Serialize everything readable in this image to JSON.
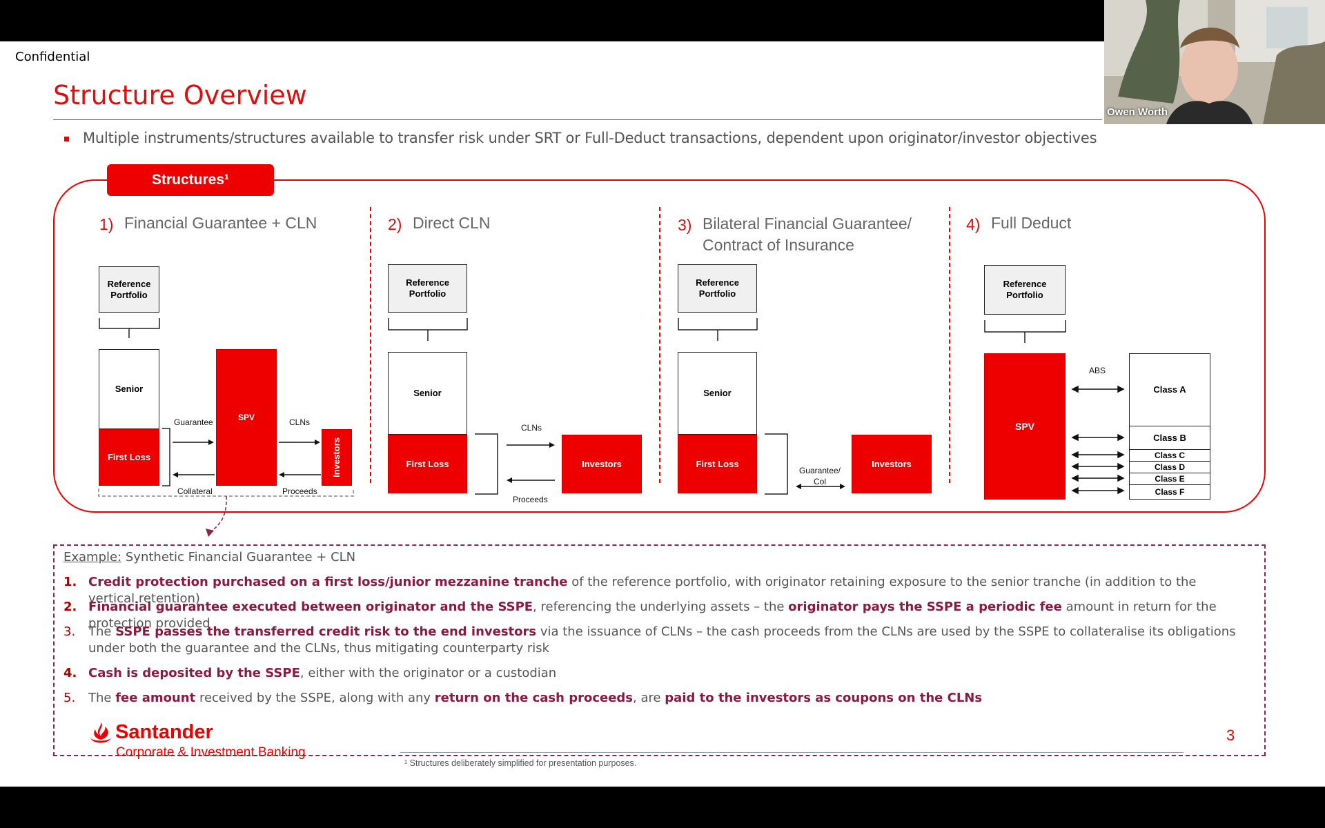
{
  "slide": {
    "confidential": "Confidential",
    "title": "Structure Overview",
    "bullet": "Multiple instruments/structures available to transfer risk under SRT or Full-Deduct transactions, dependent upon originator/investor objectives",
    "structures_tab": "Structures¹"
  },
  "sections": [
    {
      "num": "1)",
      "title": "Financial Guarantee + CLN"
    },
    {
      "num": "2)",
      "title": "Direct CLN"
    },
    {
      "num": "3)",
      "title": "Bilateral Financial Guarantee/ Contract of Insurance"
    },
    {
      "num": "4)",
      "title": "Full Deduct"
    }
  ],
  "diagram": {
    "reference_portfolio": "Reference Portfolio",
    "senior": "Senior",
    "first_loss": "First Loss",
    "spv": "SPV",
    "investors": "Investors",
    "guarantee": "Guarantee",
    "collateral": "Collateral",
    "clns": "CLNs",
    "proceeds": "Proceeds",
    "guarantee_col": "Guarantee/ Col",
    "abs": "ABS",
    "classes": [
      "Class A",
      "Class B",
      "Class C",
      "Class D",
      "Class E",
      "Class F"
    ]
  },
  "example": {
    "label": "Example:",
    "heading": " Synthetic Financial Guarantee + CLN",
    "items": [
      {
        "num": "1.",
        "bold1": "Credit protection purchased on a first loss/junior mezzanine tranche",
        "text1": " of the reference portfolio, with originator retaining exposure to the senior tranche (in addition to the vertical retention)"
      },
      {
        "num": "2.",
        "bold1": "Financial guarantee executed between originator and the SSPE",
        "text1": ", referencing the underlying assets – the ",
        "bold2": "originator pays the SSPE a periodic fee",
        "text2": " amount in return for the protection provided"
      },
      {
        "num": "3.",
        "pre": "The ",
        "bold1": "SSPE passes the transferred credit risk to the end investors",
        "text1": " via the issuance of CLNs – the cash proceeds from the CLNs are used by the SSPE to collateralise its obligations under both the guarantee and the CLNs, thus mitigating counterparty risk"
      },
      {
        "num": "4.",
        "bold1": "Cash is deposited by the SSPE",
        "text1": ", either with the originator or a custodian"
      },
      {
        "num": "5.",
        "pre": "The ",
        "bold1": "fee amount",
        "text1": " received by the SSPE, along with any ",
        "bold2": "return on the cash proceeds",
        "text2": ", are ",
        "bold3": "paid to the investors as coupons on the CLNs"
      }
    ]
  },
  "footer": {
    "logo": "Santander",
    "logo_sub": "Corporate & Investment Banking",
    "page_number": "3",
    "footnote": "¹ Structures deliberately simplified for presentation purposes."
  },
  "video": {
    "participant": "Owen Worth"
  },
  "colors": {
    "accent": "#e00000",
    "text_grey": "#555555",
    "bold_maroon": "#8a1a3e"
  }
}
